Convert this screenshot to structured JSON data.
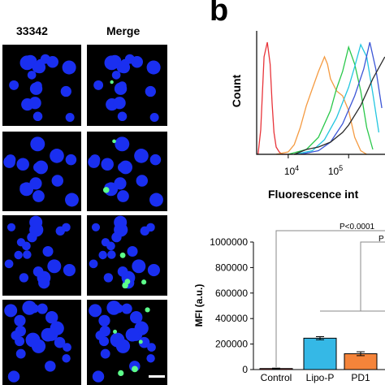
{
  "panel_a": {
    "col_labels": [
      "33342",
      "Merge"
    ]
  },
  "panel_b_label": "b",
  "chart_data": [
    {
      "type": "line",
      "ylabel": "Count",
      "xlabel": "Fluorescence int",
      "x_scale": "log",
      "x_ticks": [
        {
          "value": 10000,
          "base": "10",
          "exp": "4"
        },
        {
          "value": 100000,
          "base": "10",
          "exp": "5"
        }
      ],
      "series": [
        {
          "color": "#e8343a",
          "x": [
            3162,
            3500,
            3981,
            4500,
            5011,
            5400,
            5800,
            6310,
            7080,
            7943,
            10000
          ],
          "y": [
            0,
            20,
            80,
            92,
            74,
            42,
            18,
            6,
            2,
            0,
            0
          ]
        },
        {
          "color": "#f59b42",
          "x": [
            6310,
            10000,
            12589,
            15849,
            19953,
            25119,
            31623,
            39811,
            44668,
            50119,
            63096,
            79433,
            100000,
            125893,
            158489,
            199526
          ],
          "y": [
            0,
            2,
            8,
            22,
            40,
            54,
            68,
            80,
            74,
            62,
            52,
            48,
            36,
            14,
            3,
            0
          ]
        },
        {
          "color": "#29c84a",
          "x": [
            10000,
            19953,
            31623,
            50119,
            63096,
            79433,
            100000,
            125893,
            158489,
            199526,
            251189
          ],
          "y": [
            0,
            4,
            14,
            36,
            54,
            68,
            88,
            74,
            52,
            22,
            4
          ]
        },
        {
          "color": "#23c6e0",
          "x": [
            12589,
            25119,
            39811,
            63096,
            100000,
            125893,
            158489,
            199526,
            251189,
            316228
          ],
          "y": [
            0,
            3,
            12,
            30,
            55,
            72,
            90,
            80,
            50,
            18
          ]
        },
        {
          "color": "#3b55d6",
          "x": [
            15849,
            31623,
            50119,
            79433,
            125893,
            177828,
            223872,
            281838,
            354813
          ],
          "y": [
            0,
            3,
            10,
            25,
            48,
            70,
            92,
            70,
            38
          ]
        },
        {
          "color": "#2a2a2a",
          "x": [
            12589,
            19953,
            31623,
            50119,
            79433,
            100000,
            158489,
            251189,
            398107
          ],
          "y": [
            0,
            4,
            6,
            10,
            18,
            24,
            40,
            62,
            80
          ]
        }
      ]
    },
    {
      "type": "bar",
      "ylabel": "MFI (a.u.)",
      "categories": [
        "Control",
        "Lipo-P",
        "PD1"
      ],
      "values": [
        8000,
        246000,
        124000
      ],
      "errors": [
        3000,
        12000,
        15000
      ],
      "colors": [
        "#e03030",
        "#35b8e6",
        "#f5843a"
      ],
      "ylim": [
        0,
        1000000
      ],
      "y_ticks": [
        "0",
        "200000",
        "400000",
        "600000",
        "800000",
        "1000000"
      ],
      "annotations": [
        "P<0.0001",
        "P"
      ]
    }
  ]
}
